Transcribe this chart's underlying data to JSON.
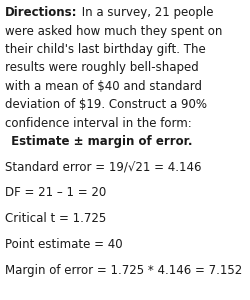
{
  "bg_color": "#ffffff",
  "directions_bold": "Directions:",
  "directions_normal_first": " In a survey, 21 people",
  "direction_lines": [
    "were asked how much they spent on",
    "their child's last birthday gift. The",
    "results were roughly bell-shaped",
    "with a mean of $40 and standard",
    "deviation of $19. Construct a 90%",
    "confidence interval in the form:"
  ],
  "estimate_line": " Estimate ± margin of error.",
  "calc_lines": [
    "Standard error = 19/√21 = 4.146",
    "DF = 21 – 1 = 20",
    "Critical t = 1.725",
    "Point estimate = 40",
    "Margin of error = 1.725 * 4.146 = 7.152"
  ],
  "font_family": "DejaVu Sans",
  "font_size": 8.5,
  "text_color": "#1a1a1a"
}
